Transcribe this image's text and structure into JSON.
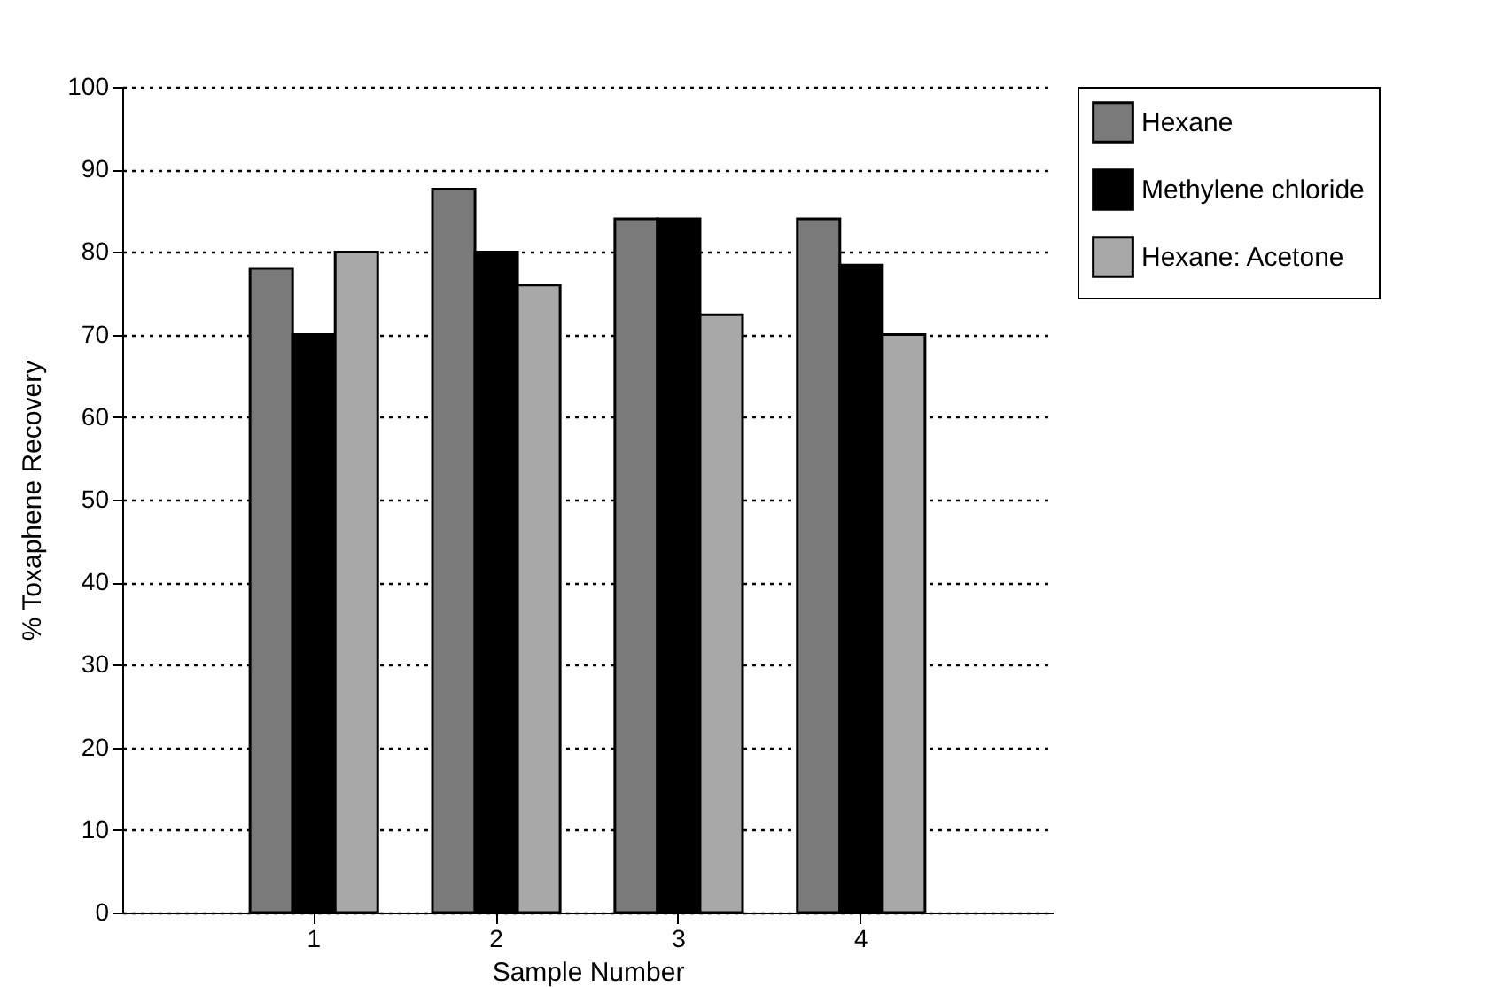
{
  "chart_data": {
    "type": "bar",
    "xlabel": "Sample Number",
    "ylabel": "% Toxaphene Recovery",
    "categories": [
      "1",
      "2",
      "3",
      "4"
    ],
    "series": [
      {
        "name": "Hexane",
        "color": "#7a7a7a",
        "values": [
          78,
          87.6,
          84,
          84
        ]
      },
      {
        "name": "Methylene chloride",
        "color": "#000000",
        "values": [
          70,
          80,
          84,
          78.4
        ]
      },
      {
        "name": "Hexane: Acetone",
        "color": "#a8a8a8",
        "values": [
          80,
          76,
          72.4,
          70
        ]
      }
    ],
    "ylim": [
      0,
      100
    ],
    "yticks": [
      0,
      10,
      20,
      30,
      40,
      50,
      60,
      70,
      80,
      90,
      100
    ],
    "grid": "y",
    "legend": "top right"
  }
}
